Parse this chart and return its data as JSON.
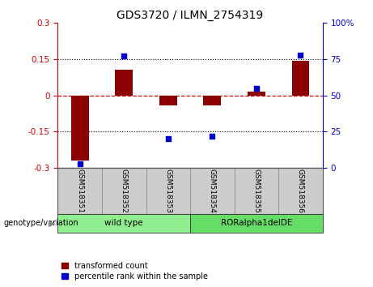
{
  "title": "GDS3720 / ILMN_2754319",
  "categories": [
    "GSM518351",
    "GSM518352",
    "GSM518353",
    "GSM518354",
    "GSM518355",
    "GSM518356"
  ],
  "bar_values": [
    -0.27,
    0.105,
    -0.04,
    -0.04,
    0.015,
    0.145
  ],
  "dot_values": [
    3,
    77,
    20,
    22,
    55,
    78
  ],
  "groups": [
    {
      "label": "wild type",
      "span": [
        0,
        3
      ],
      "color": "#90EE90"
    },
    {
      "label": "RORalpha1delDE",
      "span": [
        3,
        6
      ],
      "color": "#66DD66"
    }
  ],
  "ylim": [
    -0.3,
    0.3
  ],
  "y2lim": [
    0,
    100
  ],
  "yticks": [
    -0.3,
    -0.15,
    0,
    0.15,
    0.3
  ],
  "ytick_labels": [
    "-0.3",
    "-0.15",
    "0",
    "0.15",
    "0.3"
  ],
  "y2ticks": [
    0,
    25,
    50,
    75,
    100
  ],
  "y2tick_labels": [
    "0",
    "25",
    "50",
    "75",
    "100%"
  ],
  "dotted_lines": [
    -0.15,
    0.15
  ],
  "zero_line": 0.0,
  "bar_color": "#8B0000",
  "dot_color": "#0000CD",
  "bar_width": 0.4,
  "legend_bar_label": "transformed count",
  "legend_dot_label": "percentile rank within the sample",
  "genotype_label": "genotype/variation",
  "title_fontsize": 10,
  "tick_fontsize": 7.5,
  "label_fontsize": 7,
  "left_color": "#CC0000",
  "right_color": "#0000CD"
}
